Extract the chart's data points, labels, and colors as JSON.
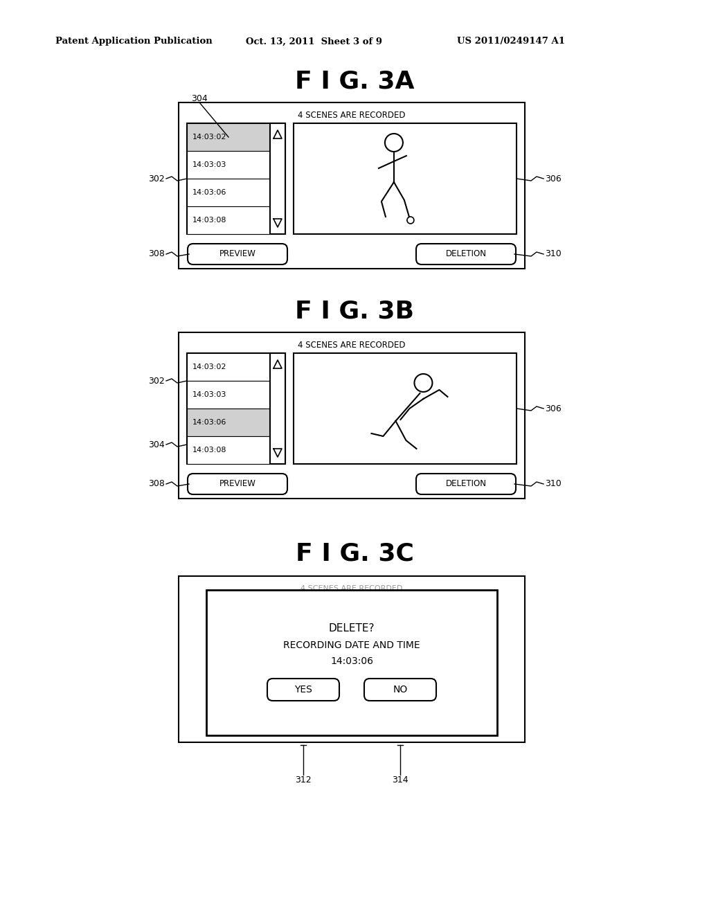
{
  "bg_color": "#ffffff",
  "header_left": "Patent Application Publication",
  "header_mid": "Oct. 13, 2011  Sheet 3 of 9",
  "header_right": "US 2011/0249147 A1",
  "fig3a_title": "F I G. 3A",
  "fig3b_title": "F I G. 3B",
  "fig3c_title": "F I G. 3C",
  "scenes_text": "4 SCENES ARE RECORDED",
  "times": [
    "14:03:02",
    "14:03:03",
    "14:03:06",
    "14:03:08"
  ],
  "preview_text": "PREVIEW",
  "deletion_text": "DELETION",
  "yes_text": "YES",
  "no_text": "NO",
  "delete_line1": "DELETE?",
  "delete_line2": "RECORDING DATE AND TIME",
  "delete_line3": "14:03:06",
  "label_302": "302",
  "label_304": "304",
  "label_306": "306",
  "label_308": "308",
  "label_310": "310",
  "label_312": "312",
  "label_314": "314"
}
